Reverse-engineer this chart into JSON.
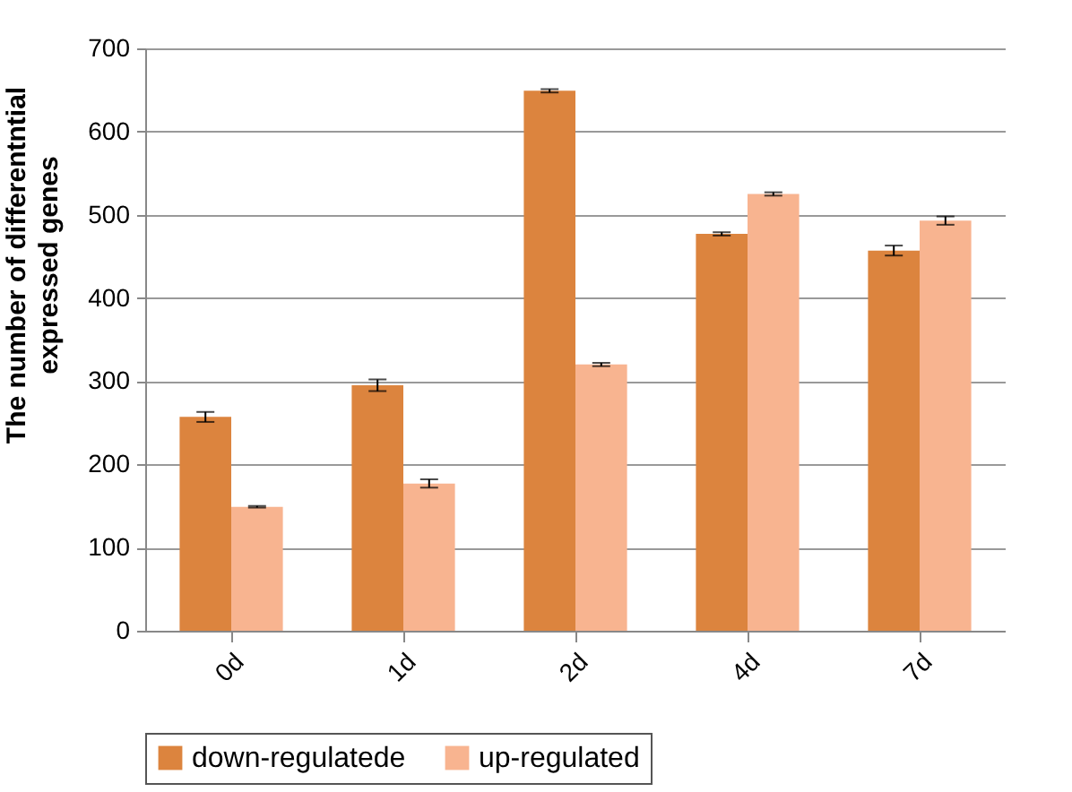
{
  "chart_data": {
    "type": "bar",
    "ylabel": "The number of differentntial expressed genes",
    "categories": [
      "0d",
      "1d",
      "2d",
      "4d",
      "7d"
    ],
    "series": [
      {
        "name": "down-regulatede",
        "color": "#dc843e",
        "values": [
          257,
          295,
          649,
          477,
          457
        ],
        "errors": [
          6,
          7,
          2,
          2,
          6
        ]
      },
      {
        "name": "up-regulated",
        "color": "#f8b490",
        "values": [
          149,
          177,
          320,
          525,
          493
        ],
        "errors": [
          1,
          5,
          2,
          2,
          5
        ]
      }
    ],
    "ylim": [
      0,
      700
    ],
    "yticks": [
      0,
      100,
      200,
      300,
      400,
      500,
      600,
      700
    ],
    "grid": "y",
    "legend": "bottom"
  }
}
